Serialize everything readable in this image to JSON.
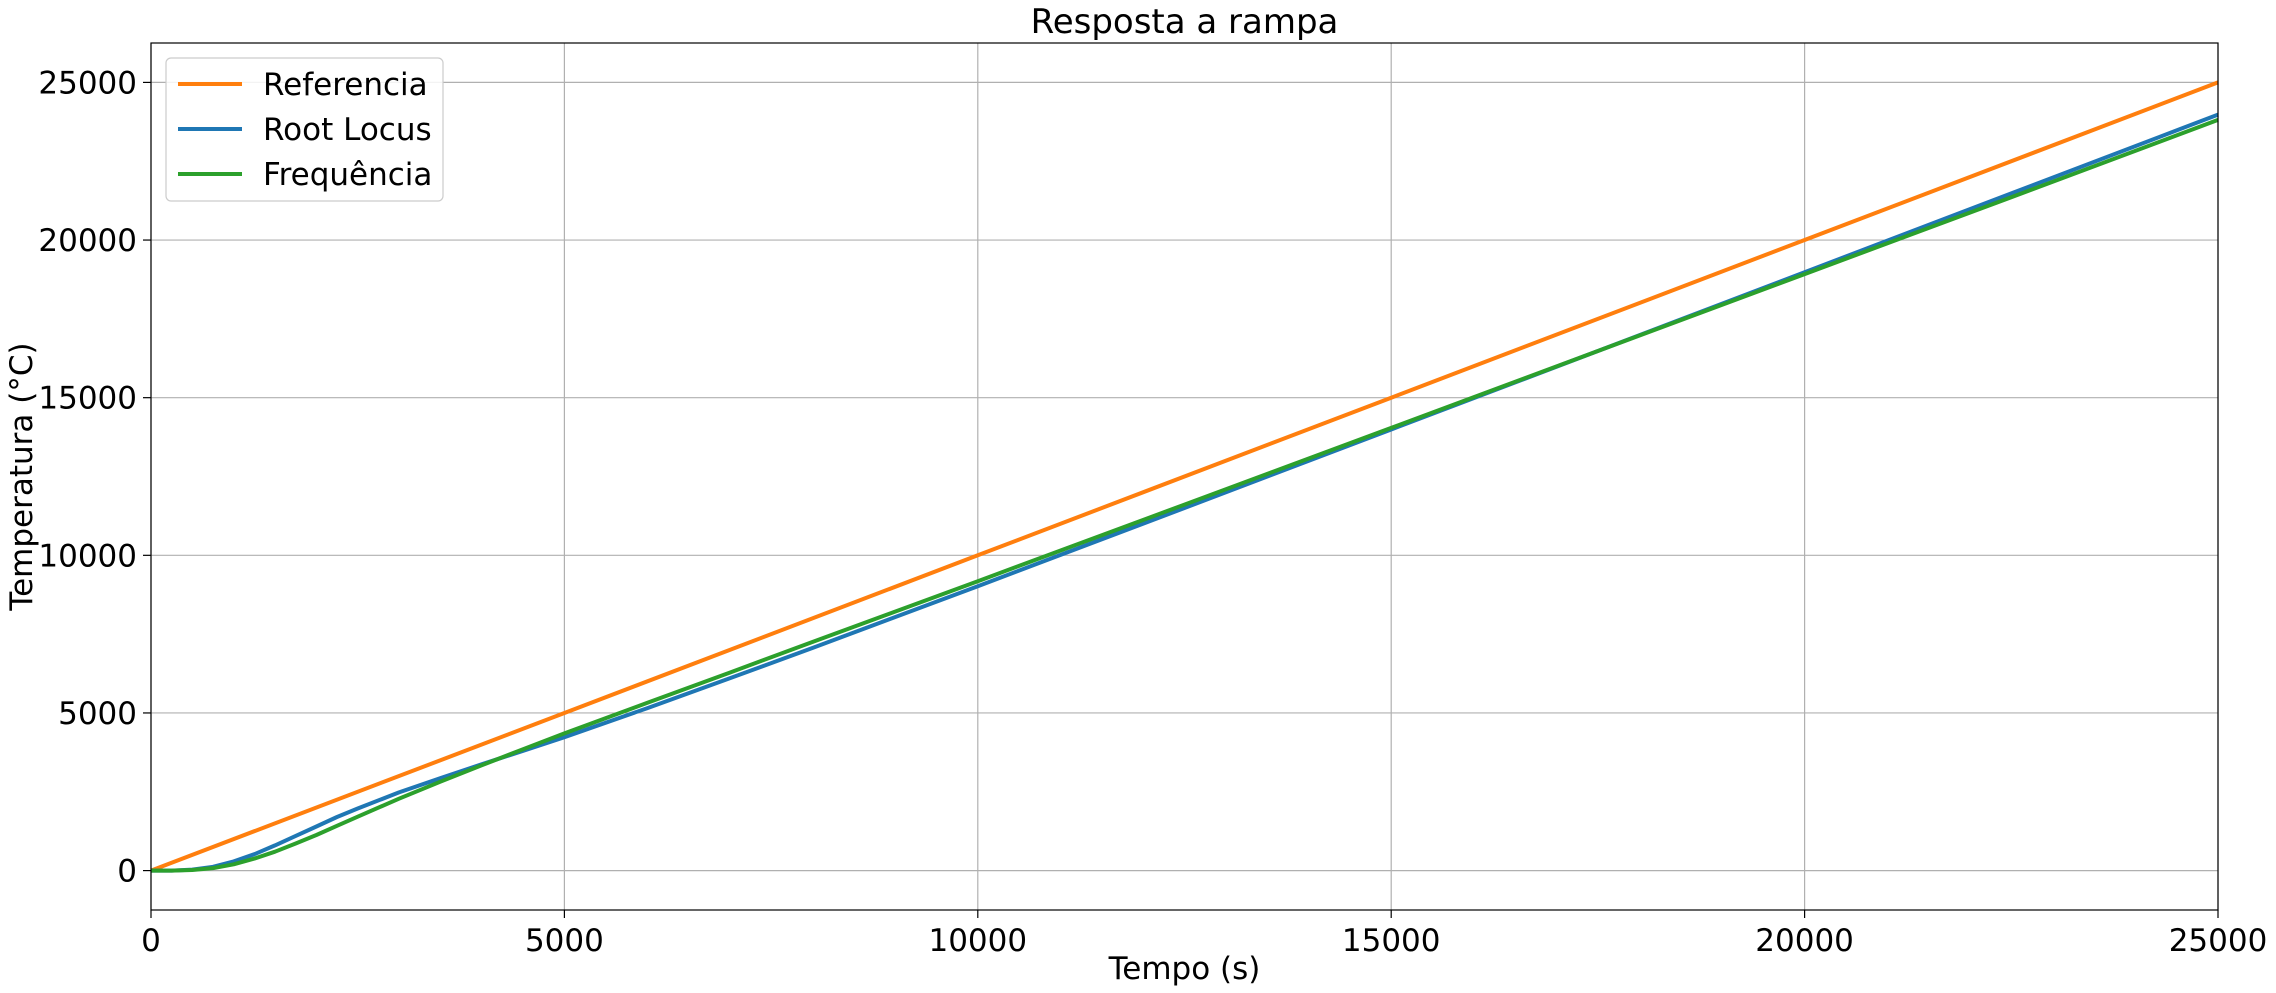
{
  "chart_data": {
    "type": "line",
    "title": "Resposta a rampa",
    "xlabel": "Tempo (s)",
    "ylabel": "Temperatura (°C)",
    "xlim": [
      0,
      25000
    ],
    "ylim": [
      -1250,
      26250
    ],
    "xticks": [
      0,
      5000,
      10000,
      15000,
      20000,
      25000
    ],
    "yticks": [
      0,
      5000,
      10000,
      15000,
      20000,
      25000
    ],
    "grid": true,
    "legend_position": "upper-left",
    "series": [
      {
        "name": "Referencia",
        "color": "#ff7f0e",
        "points": [
          [
            0,
            0
          ],
          [
            5000,
            5000
          ],
          [
            10000,
            10000
          ],
          [
            15000,
            15000
          ],
          [
            20000,
            20000
          ],
          [
            25000,
            25000
          ]
        ]
      },
      {
        "name": "Root Locus",
        "color": "#1f77b4",
        "points": [
          [
            0,
            0
          ],
          [
            250,
            0
          ],
          [
            500,
            30
          ],
          [
            750,
            120
          ],
          [
            1000,
            290
          ],
          [
            1250,
            520
          ],
          [
            1500,
            800
          ],
          [
            1750,
            1100
          ],
          [
            2000,
            1400
          ],
          [
            2250,
            1700
          ],
          [
            2500,
            1970
          ],
          [
            3000,
            2480
          ],
          [
            3500,
            2930
          ],
          [
            4000,
            3370
          ],
          [
            4500,
            3800
          ],
          [
            5000,
            4230
          ],
          [
            6000,
            5150
          ],
          [
            7000,
            6100
          ],
          [
            8000,
            7060
          ],
          [
            10000,
            9020
          ],
          [
            12500,
            11500
          ],
          [
            15000,
            13990
          ],
          [
            17500,
            16480
          ],
          [
            20000,
            18980
          ],
          [
            22500,
            21480
          ],
          [
            25000,
            23980
          ]
        ]
      },
      {
        "name": "Frequência",
        "color": "#2ca02c",
        "points": [
          [
            0,
            0
          ],
          [
            250,
            0
          ],
          [
            500,
            20
          ],
          [
            750,
            80
          ],
          [
            1000,
            200
          ],
          [
            1250,
            380
          ],
          [
            1500,
            600
          ],
          [
            1750,
            860
          ],
          [
            2000,
            1130
          ],
          [
            2250,
            1420
          ],
          [
            2500,
            1710
          ],
          [
            3000,
            2280
          ],
          [
            3500,
            2820
          ],
          [
            4000,
            3340
          ],
          [
            4500,
            3850
          ],
          [
            5000,
            4350
          ],
          [
            6000,
            5320
          ],
          [
            7000,
            6280
          ],
          [
            8000,
            7250
          ],
          [
            10000,
            9180
          ],
          [
            12500,
            11610
          ],
          [
            15000,
            14040
          ],
          [
            17500,
            16480
          ],
          [
            20000,
            18920
          ],
          [
            22500,
            21360
          ],
          [
            25000,
            23810
          ]
        ]
      }
    ]
  }
}
